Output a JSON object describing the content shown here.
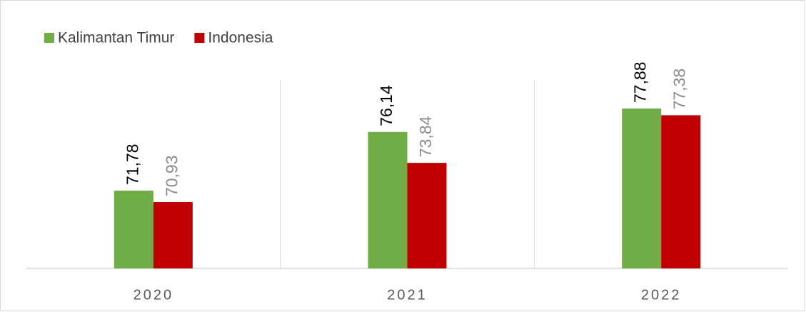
{
  "chart_data": {
    "type": "bar",
    "categories": [
      "2020",
      "2021",
      "2022"
    ],
    "series": [
      {
        "name": "Kalimantan Timur",
        "color": "#70ad47",
        "label_color": "#000000",
        "values": [
          71.78,
          76.14,
          77.88
        ],
        "value_labels": [
          "71,78",
          "76,14",
          "77,88"
        ]
      },
      {
        "name": "Indonesia",
        "color": "#c00000",
        "label_color": "#8c8c8c",
        "values": [
          70.93,
          73.84,
          77.38
        ],
        "value_labels": [
          "70,93",
          "73,84",
          "77,38"
        ]
      }
    ],
    "ylim": [
      66,
      80
    ],
    "legend": "top-left"
  }
}
